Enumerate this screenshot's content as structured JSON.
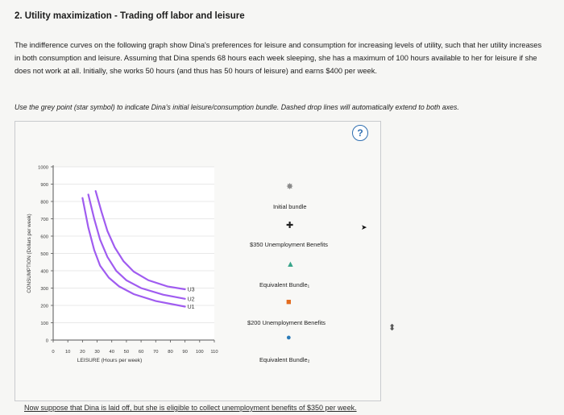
{
  "question": {
    "heading": "2. Utility maximization - Trading off labor and leisure",
    "intro": "The indifference curves on the following graph show Dina's preferences for leisure and consumption for increasing levels of utility, such that her utility increases in both consumption and leisure. Assuming that Dina spends 68 hours each week sleeping, she has a maximum of 100 hours available to her for leisure if she does not work at all. Initially, she works 50 hours (and thus has 50 hours of leisure) and earns $400 per week.",
    "instruction": "Use the grey point (star symbol) to indicate Dina's initial leisure/consumption bundle. Dashed drop lines will automatically extend to both axes.",
    "footer": "Now suppose that Dina is laid off, but she is eligible to collect unemployment benefits of $350 per week."
  },
  "help_label": "?",
  "palette": [
    {
      "label": "Initial bundle",
      "icon": "star-icon",
      "color": "#8a8a8a",
      "glyph": "✸"
    },
    {
      "label": "$350 Unemployment Benefits",
      "icon": "plus-icon",
      "color": "#222222",
      "glyph": "✚"
    },
    {
      "label": "Equivalent Bundle₁",
      "icon": "triangle-icon",
      "color": "#39a58a",
      "glyph": "▲"
    },
    {
      "label": "$200 Unemployment Benefits",
      "icon": "square-icon",
      "color": "#e36c1f",
      "glyph": "■"
    },
    {
      "label": "Equivalent Bundle₂",
      "icon": "circle-icon",
      "color": "#2b7bb8",
      "glyph": "●"
    }
  ],
  "chart_data": {
    "type": "line",
    "xlabel": "LEISURE (Hours per week)",
    "ylabel": "CONSUMPTION (Dollars per week)",
    "xlim": [
      0,
      110
    ],
    "ylim": [
      0,
      1000
    ],
    "x_ticks": [
      0,
      10,
      20,
      30,
      40,
      50,
      60,
      70,
      80,
      90,
      100,
      110
    ],
    "y_ticks": [
      0,
      100,
      200,
      300,
      400,
      500,
      600,
      700,
      800,
      900,
      1000
    ],
    "curve_color": "#a05cf0",
    "series": [
      {
        "name": "U1",
        "points": [
          [
            20,
            820
          ],
          [
            24,
            650
          ],
          [
            28,
            520
          ],
          [
            32,
            430
          ],
          [
            38,
            360
          ],
          [
            45,
            310
          ],
          [
            55,
            265
          ],
          [
            70,
            225
          ],
          [
            90,
            193
          ]
        ]
      },
      {
        "name": "U2",
        "points": [
          [
            24,
            840
          ],
          [
            28,
            700
          ],
          [
            32,
            580
          ],
          [
            37,
            480
          ],
          [
            43,
            400
          ],
          [
            50,
            345
          ],
          [
            60,
            300
          ],
          [
            75,
            262
          ],
          [
            90,
            238
          ]
        ]
      },
      {
        "name": "U3",
        "points": [
          [
            29,
            860
          ],
          [
            33,
            740
          ],
          [
            37,
            630
          ],
          [
            42,
            535
          ],
          [
            48,
            455
          ],
          [
            55,
            395
          ],
          [
            65,
            345
          ],
          [
            78,
            310
          ],
          [
            90,
            293
          ]
        ]
      }
    ]
  }
}
